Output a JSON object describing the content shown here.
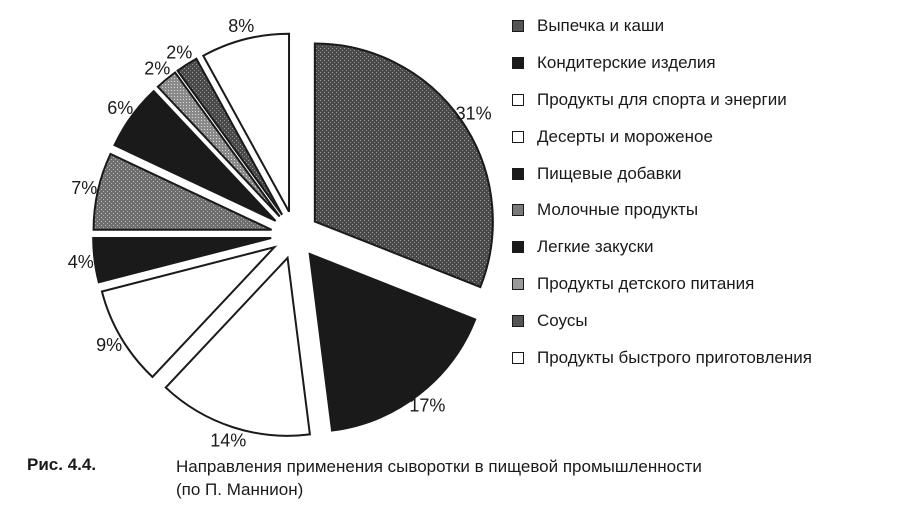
{
  "chart_data": {
    "type": "pie",
    "title": "",
    "slices": [
      {
        "label": "Выпечка и каши",
        "value": 31,
        "value_label": "31%",
        "fill": "pattern-dark"
      },
      {
        "label": "Кондитерские изделия",
        "value": 17,
        "value_label": "17%",
        "fill": "black"
      },
      {
        "label": "Продукты для спорта и энергии",
        "value": 14,
        "value_label": "14%",
        "fill": "white"
      },
      {
        "label": "Десерты и мороженое",
        "value": 9,
        "value_label": "9%",
        "fill": "white"
      },
      {
        "label": "Пищевые добавки",
        "value": 4,
        "value_label": "4%",
        "fill": "black"
      },
      {
        "label": "Молочные продукты",
        "value": 7,
        "value_label": "7%",
        "fill": "pattern-medium"
      },
      {
        "label": "Легкие закуски",
        "value": 6,
        "value_label": "6%",
        "fill": "black"
      },
      {
        "label": "Продукты детского питания",
        "value": 2,
        "value_label": "2%",
        "fill": "pattern-light"
      },
      {
        "label": "Соусы",
        "value": 2,
        "value_label": "2%",
        "fill": "pattern-dark"
      },
      {
        "label": "Продукты быстрого приготовления",
        "value": 8,
        "value_label": "8%",
        "fill": "white"
      }
    ],
    "start_angle_deg": 0,
    "direction": "clockwise",
    "exploded": true,
    "legend_position": "right"
  },
  "caption": {
    "figure_number": "Рис. 4.4.",
    "line1": "Направления применения сыворотки в пищевой промышленности",
    "line2": "(по П. Маннион)"
  },
  "colors": {
    "ink": "#1a1a1a",
    "dark_pattern": "#555555",
    "medium_pattern": "#7a7a7a",
    "light_pattern": "#9a9a9a"
  }
}
